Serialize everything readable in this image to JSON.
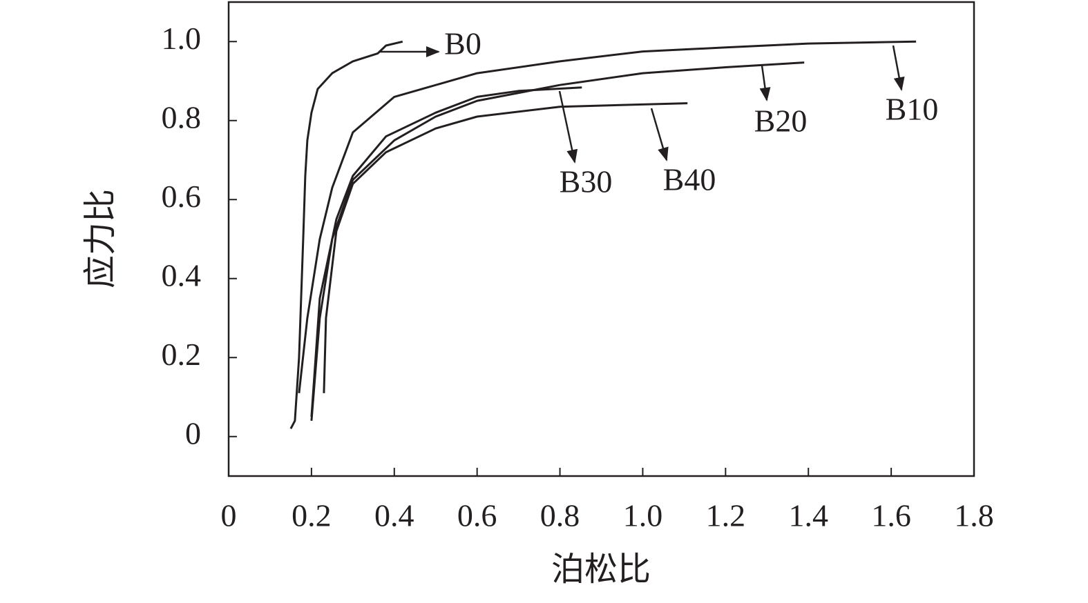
{
  "chart_data": {
    "type": "line",
    "x_label": "泊松比",
    "y_label": "应力比",
    "xlim": [
      0,
      1.8
    ],
    "ylim": [
      -0.1,
      1.1
    ],
    "xticks": [
      0,
      0.2,
      0.4,
      0.6,
      0.8,
      {
        "value": 1.0,
        "label": "1.0"
      },
      1.2,
      1.4,
      1.6,
      1.8
    ],
    "yticks": [
      0,
      0.2,
      0.4,
      0.6,
      0.8,
      {
        "value": 1.0,
        "label": "1.0"
      }
    ],
    "series": [
      {
        "name": "B0",
        "color": "#231f20",
        "x": [
          0.15,
          0.16,
          0.17,
          0.18,
          0.185,
          0.19,
          0.2,
          0.215,
          0.25,
          0.3,
          0.36,
          0.38,
          0.42
        ],
        "values": [
          0.02,
          0.04,
          0.2,
          0.5,
          0.66,
          0.75,
          0.82,
          0.88,
          0.92,
          0.95,
          0.97,
          0.99,
          1.0
        ]
      },
      {
        "name": "B10",
        "color": "#231f20",
        "x": [
          0.17,
          0.19,
          0.22,
          0.25,
          0.3,
          0.4,
          0.6,
          0.8,
          1.0,
          1.2,
          1.4,
          1.66
        ],
        "values": [
          0.11,
          0.3,
          0.5,
          0.63,
          0.77,
          0.86,
          0.92,
          0.95,
          0.975,
          0.985,
          0.995,
          1.0
        ]
      },
      {
        "name": "B20",
        "color": "#231f20",
        "x": [
          0.2,
          0.22,
          0.25,
          0.3,
          0.4,
          0.5,
          0.6,
          0.8,
          1.0,
          1.2,
          1.39
        ],
        "values": [
          0.04,
          0.3,
          0.5,
          0.65,
          0.75,
          0.81,
          0.85,
          0.89,
          0.92,
          0.935,
          0.947
        ]
      },
      {
        "name": "B30",
        "color": "#231f20",
        "x": [
          0.2,
          0.22,
          0.26,
          0.3,
          0.38,
          0.5,
          0.6,
          0.7,
          0.853
        ],
        "values": [
          0.05,
          0.35,
          0.55,
          0.66,
          0.76,
          0.82,
          0.86,
          0.875,
          0.884
        ]
      },
      {
        "name": "B40",
        "color": "#231f20",
        "x": [
          0.23,
          0.235,
          0.26,
          0.3,
          0.38,
          0.5,
          0.6,
          0.8,
          1.108
        ],
        "values": [
          0.11,
          0.3,
          0.52,
          0.64,
          0.72,
          0.78,
          0.81,
          0.835,
          0.844
        ]
      }
    ]
  }
}
